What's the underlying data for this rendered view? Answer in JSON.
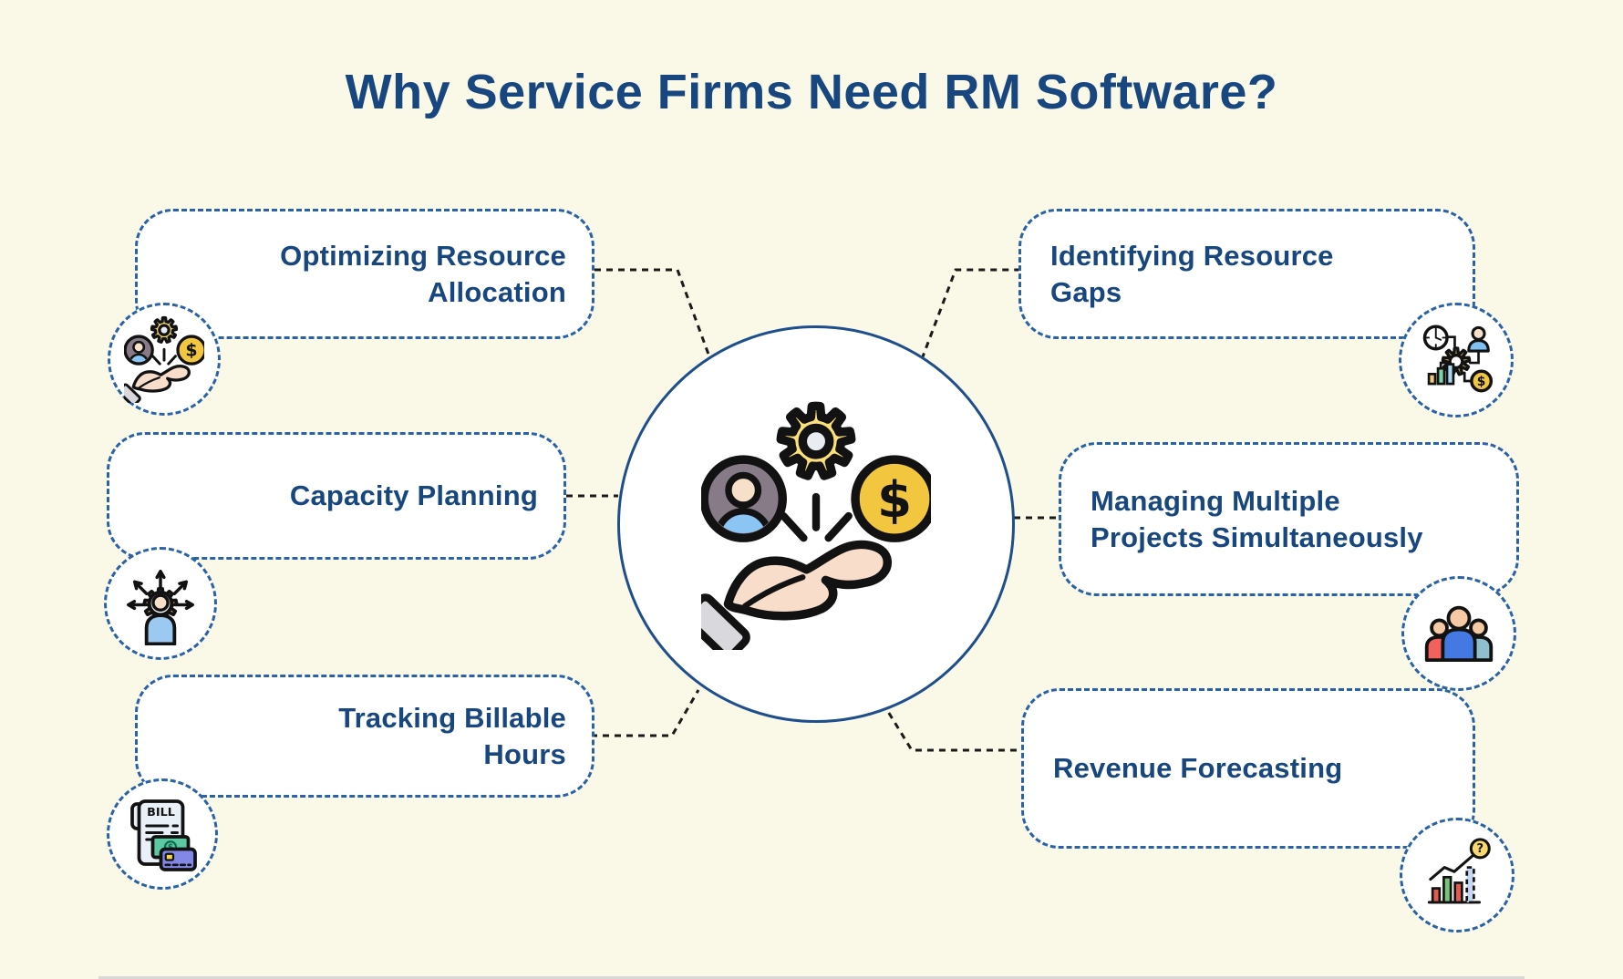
{
  "title": "Why Service Firms Need RM Software?",
  "glyphs": {
    "bill": "BILL",
    "dollar": "$",
    "question": "?"
  },
  "colors": {
    "background": "#FAF9E8",
    "box_border": "#2A62A6",
    "box_fill": "#FFFFFF",
    "text": "#17477E",
    "connector": "#1A1A1A",
    "circle_border": "#1E4E8C",
    "gear_yellow": "#FBE07A",
    "coin_gold": "#F2C63F",
    "skin": "#F8DDCB"
  },
  "center": {
    "icon": "hand-holding-resources-icon"
  },
  "items": [
    {
      "id": "optimizing-resource-allocation",
      "label": "Optimizing Resource Allocation",
      "side": "left",
      "icon": "hand-holding-resources-icon"
    },
    {
      "id": "capacity-planning",
      "label": "Capacity Planning",
      "side": "left",
      "icon": "person-gear-arrows-icon"
    },
    {
      "id": "tracking-billable-hours",
      "label": "Tracking Billable Hours",
      "side": "left",
      "icon": "bill-invoice-icon"
    },
    {
      "id": "identifying-resource-gaps",
      "label": "Identifying Resource Gaps",
      "side": "right",
      "icon": "resource-network-icon"
    },
    {
      "id": "managing-multiple-projects",
      "label": "Managing Multiple Projects Simultaneously",
      "side": "right",
      "icon": "team-icon"
    },
    {
      "id": "revenue-forecasting",
      "label": "Revenue Forecasting",
      "side": "right",
      "icon": "forecast-chart-icon"
    }
  ]
}
